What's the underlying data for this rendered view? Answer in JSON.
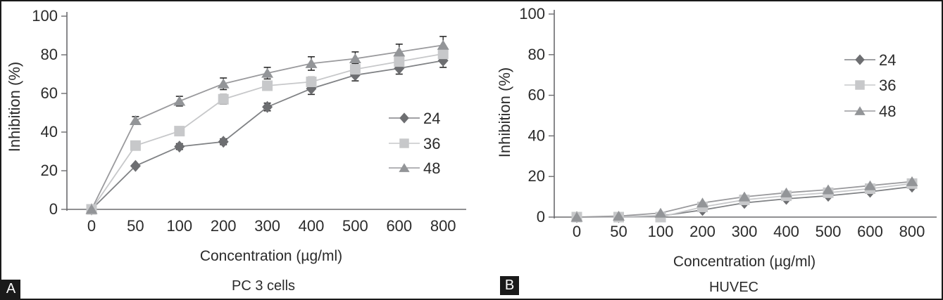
{
  "figure": {
    "background": "#ffffff",
    "border_color": "#1a1a1a"
  },
  "colors": {
    "axis": "#6b6b6e",
    "text": "#2b2b2b",
    "error_bar": "#2b2b2b"
  },
  "chart_data": [
    {
      "type": "line",
      "panel_label": "A",
      "title": "PC 3 cells",
      "xlabel": "Concentration (µg/ml)",
      "ylabel": "Inhibition (%)",
      "categories": [
        "0",
        "50",
        "100",
        "200",
        "300",
        "400",
        "500",
        "600",
        "800"
      ],
      "ylim": [
        0,
        100
      ],
      "yticks": [
        0,
        20,
        40,
        60,
        80,
        100
      ],
      "grid": false,
      "legend_position": "inside-right",
      "error_bars": true,
      "series": [
        {
          "name": "24",
          "marker": "diamond",
          "marker_color": "#6d6e71",
          "line_color": "#808285",
          "values": [
            0,
            22.5,
            32.5,
            35,
            53,
            62.5,
            69.5,
            73,
            77
          ],
          "errors": [
            0,
            0,
            1.5,
            1.5,
            2,
            3,
            3,
            3,
            3.5
          ]
        },
        {
          "name": "36",
          "marker": "square",
          "marker_color": "#c7c8ca",
          "line_color": "#c7c8ca",
          "values": [
            0,
            33,
            40.5,
            57,
            64,
            66,
            72.5,
            76.5,
            80.5
          ],
          "errors": [
            0,
            1.5,
            2,
            2.5,
            2,
            2.5,
            3,
            3,
            3
          ]
        },
        {
          "name": "48",
          "marker": "triangle",
          "marker_color": "#939598",
          "line_color": "#9a9a9d",
          "values": [
            0,
            46,
            56,
            65,
            70.5,
            75.5,
            78,
            81.5,
            85
          ],
          "errors": [
            0,
            2,
            2.5,
            3,
            3,
            3.5,
            3.5,
            4,
            4.5
          ]
        }
      ]
    },
    {
      "type": "line",
      "panel_label": "B",
      "title": "HUVEC",
      "xlabel": "Concentration (µg/ml)",
      "ylabel": "Inhibition (%)",
      "categories": [
        "0",
        "50",
        "100",
        "200",
        "300",
        "400",
        "500",
        "600",
        "800"
      ],
      "ylim": [
        0,
        100
      ],
      "yticks": [
        0,
        20,
        40,
        60,
        80,
        100
      ],
      "grid": false,
      "legend_position": "inside-right",
      "error_bars": false,
      "series": [
        {
          "name": "24",
          "marker": "diamond",
          "marker_color": "#6d6e71",
          "line_color": "#808285",
          "values": [
            0,
            0,
            0.5,
            3.5,
            7,
            9,
            10.5,
            12.5,
            15
          ],
          "errors": [
            0,
            0,
            0,
            0,
            0,
            0,
            0,
            0,
            0
          ]
        },
        {
          "name": "36",
          "marker": "square",
          "marker_color": "#c7c8ca",
          "line_color": "#c7c8ca",
          "values": [
            0,
            0,
            0,
            5,
            8.5,
            10.5,
            12,
            14,
            16.5
          ],
          "errors": [
            0,
            0,
            0,
            0,
            0,
            0,
            0,
            0,
            0
          ]
        },
        {
          "name": "48",
          "marker": "triangle",
          "marker_color": "#939598",
          "line_color": "#9a9a9d",
          "values": [
            0,
            0.5,
            2,
            7,
            10,
            12,
            13.5,
            15.5,
            17.5
          ],
          "errors": [
            0,
            0,
            0,
            0,
            0,
            0,
            0,
            0,
            0
          ]
        }
      ]
    }
  ]
}
